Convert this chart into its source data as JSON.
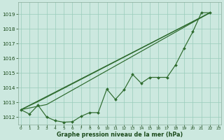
{
  "background_color": "#cce8df",
  "grid_color": "#99ccbb",
  "line_color": "#2d6a2d",
  "marker_color": "#2d6a2d",
  "title": "Graphe pression niveau de la mer (hPa)",
  "ylim": [
    1011.5,
    1019.8
  ],
  "yticks": [
    1012,
    1013,
    1014,
    1015,
    1016,
    1017,
    1018,
    1019
  ],
  "xlim": [
    -0.3,
    23.3
  ],
  "xticks": [
    0,
    1,
    2,
    3,
    4,
    5,
    6,
    7,
    8,
    9,
    10,
    11,
    12,
    13,
    14,
    15,
    16,
    17,
    18,
    19,
    20,
    21,
    22,
    23
  ],
  "xdata": [
    0,
    1,
    2,
    3,
    4,
    5,
    6,
    7,
    8,
    9,
    10,
    11,
    12,
    13,
    14,
    15,
    16,
    17,
    18,
    19,
    20,
    21,
    22
  ],
  "ydata": [
    1012.5,
    1012.2,
    1012.8,
    1012.0,
    1011.75,
    1011.65,
    1011.68,
    1012.05,
    1012.3,
    1012.3,
    1013.9,
    1013.2,
    1013.85,
    1014.9,
    1014.3,
    1014.7,
    1014.7,
    1014.7,
    1015.55,
    1016.7,
    1017.8,
    1019.1,
    1019.1
  ],
  "trend1_x": [
    0,
    22
  ],
  "trend1_y": [
    1012.5,
    1019.1
  ],
  "trend2_x": [
    0,
    2,
    22
  ],
  "trend2_y": [
    1012.5,
    1013.05,
    1019.1
  ],
  "trend3_x": [
    0,
    3,
    22
  ],
  "trend3_y": [
    1012.5,
    1012.85,
    1019.1
  ]
}
